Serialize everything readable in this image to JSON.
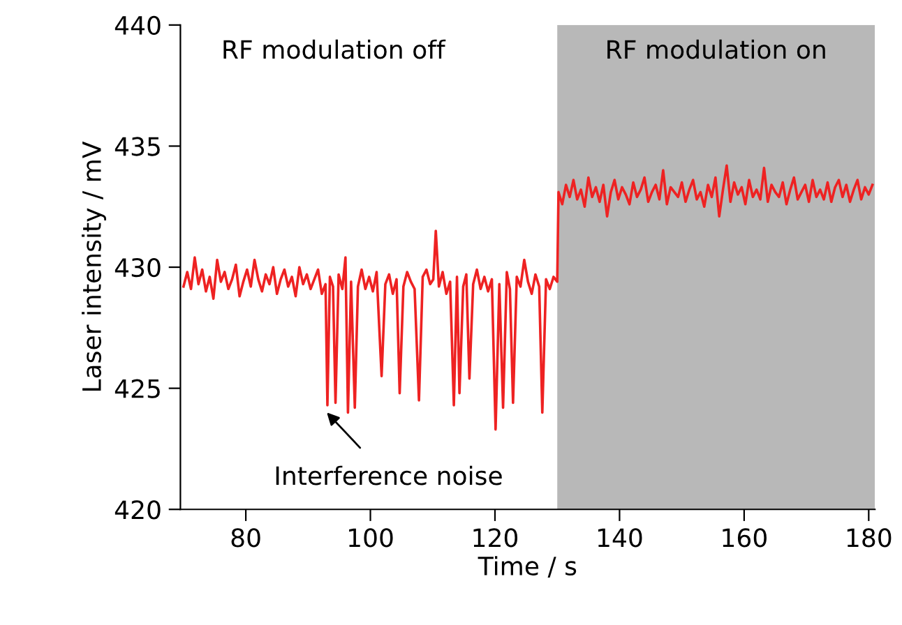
{
  "chart_data": {
    "type": "line",
    "xlabel": "Time / s",
    "ylabel": "Laser intensity / mV",
    "xlim": [
      69.5,
      181
    ],
    "xticks": [
      80,
      100,
      120,
      140,
      160,
      180
    ],
    "ylim": [
      420,
      440
    ],
    "yticks": [
      420,
      425,
      430,
      435,
      440
    ],
    "grid": false,
    "legend": false,
    "marker": "none",
    "line_style": "solid",
    "bands": [
      {
        "axis": "x",
        "from": 130,
        "to": 181,
        "label": "RF modulation on",
        "color": "#b8b8b8"
      }
    ],
    "annotations": [
      "RF modulation off",
      {
        "text": "Interference noise",
        "x": 93,
        "y": 424.3
      }
    ],
    "series": [
      {
        "color": "#ee2222",
        "x": [
          70,
          70.6,
          71.2,
          71.8,
          72.4,
          73,
          73.6,
          74.2,
          74.8,
          75.4,
          76,
          76.6,
          77.2,
          77.8,
          78.4,
          79,
          79.6,
          80.2,
          80.8,
          81.4,
          82,
          82.6,
          83.2,
          83.8,
          84.4,
          85,
          85.6,
          86.2,
          86.8,
          87.4,
          88,
          88.6,
          89.2,
          89.8,
          90.4,
          91,
          91.6,
          92.2,
          92.8,
          93.1,
          93.5,
          94,
          94.4,
          94.9,
          95.5,
          96,
          96.4,
          96.9,
          97.5,
          98,
          98.6,
          99.2,
          99.8,
          100.4,
          101,
          101.8,
          102.4,
          103,
          103.6,
          104.2,
          104.7,
          105.3,
          105.9,
          106.5,
          107.1,
          107.8,
          108.4,
          109,
          109.6,
          110.1,
          110.5,
          111,
          111.6,
          112.2,
          112.8,
          113.4,
          113.9,
          114.3,
          114.9,
          115.4,
          115.9,
          116.5,
          117.1,
          117.7,
          118.3,
          118.9,
          119.5,
          120.1,
          120.7,
          121.3,
          121.9,
          122.4,
          122.9,
          123.5,
          124.1,
          124.7,
          125.3,
          125.9,
          126.5,
          127.1,
          127.6,
          128.2,
          128.8,
          129.4,
          130,
          130.2,
          130.8,
          131.4,
          132,
          132.6,
          133.2,
          133.8,
          134.4,
          135,
          135.6,
          136.2,
          136.8,
          137.4,
          138,
          138.6,
          139.2,
          139.8,
          140.4,
          141,
          141.6,
          142.2,
          142.8,
          143.4,
          144,
          144.6,
          145.2,
          145.8,
          146.4,
          147,
          147.6,
          148.2,
          148.8,
          149.4,
          150,
          150.6,
          151.2,
          151.8,
          152.4,
          153,
          153.6,
          154.2,
          154.8,
          155.4,
          156,
          156.6,
          157.2,
          157.8,
          158.4,
          159,
          159.6,
          160.2,
          160.8,
          161.4,
          162,
          162.6,
          163.2,
          163.8,
          164.4,
          165,
          165.6,
          166.2,
          166.8,
          167.4,
          168,
          168.6,
          169.2,
          169.8,
          170.4,
          171,
          171.6,
          172.2,
          172.8,
          173.4,
          174,
          174.6,
          175.2,
          175.8,
          176.4,
          177,
          177.6,
          178.2,
          178.8,
          179.4,
          180,
          180.6
        ],
        "values": [
          429.2,
          429.8,
          429.1,
          430.4,
          429.3,
          429.9,
          429,
          429.6,
          428.7,
          430.3,
          429.4,
          429.8,
          429.1,
          429.5,
          430.1,
          428.8,
          429.4,
          429.9,
          429.2,
          430.3,
          429.5,
          429,
          429.7,
          429.3,
          430,
          428.9,
          429.5,
          429.9,
          429.2,
          429.6,
          428.8,
          430,
          429.3,
          429.7,
          429.1,
          429.5,
          429.9,
          428.9,
          429.3,
          424.3,
          429.6,
          429.2,
          424.4,
          429.7,
          429.1,
          430.4,
          424,
          429.4,
          424.2,
          429.2,
          429.9,
          429.1,
          429.6,
          429,
          429.8,
          425.5,
          429.3,
          429.7,
          428.9,
          429.5,
          424.8,
          429.2,
          429.8,
          429.4,
          429.1,
          424.5,
          429.6,
          429.9,
          429.3,
          429.5,
          431.5,
          429.2,
          429.8,
          428.9,
          429.4,
          424.3,
          429.6,
          424.8,
          429.2,
          429.7,
          425.4,
          429.3,
          429.9,
          429.1,
          429.6,
          429,
          429.5,
          423.3,
          429.3,
          424.2,
          429.8,
          429.1,
          424.4,
          429.6,
          429.2,
          430.3,
          429.4,
          428.9,
          429.7,
          429.2,
          424,
          429.5,
          429.1,
          429.6,
          429.4,
          433.1,
          432.6,
          433.4,
          432.9,
          433.6,
          432.8,
          433.2,
          432.5,
          433.7,
          432.9,
          433.3,
          432.7,
          433.4,
          432.1,
          433.1,
          433.6,
          432.8,
          433.3,
          433,
          432.6,
          433.5,
          432.9,
          433.2,
          433.7,
          432.7,
          433.1,
          433.4,
          432.8,
          434,
          432.6,
          433.3,
          433.1,
          432.9,
          433.5,
          432.7,
          433.2,
          433.6,
          432.8,
          433.1,
          432.5,
          433.4,
          432.9,
          433.7,
          432.1,
          433.2,
          434.2,
          432.7,
          433.5,
          433,
          433.3,
          432.6,
          433.6,
          432.9,
          433.2,
          432.8,
          434.1,
          432.7,
          433.4,
          433.1,
          432.9,
          433.5,
          432.6,
          433.2,
          433.7,
          432.8,
          433.1,
          433.4,
          432.7,
          433.6,
          432.9,
          433.2,
          432.8,
          433.5,
          432.7,
          433.3,
          433.6,
          432.9,
          433.4,
          432.7,
          433.2,
          433.6,
          432.8,
          433.3,
          433,
          433.4
        ]
      }
    ]
  }
}
